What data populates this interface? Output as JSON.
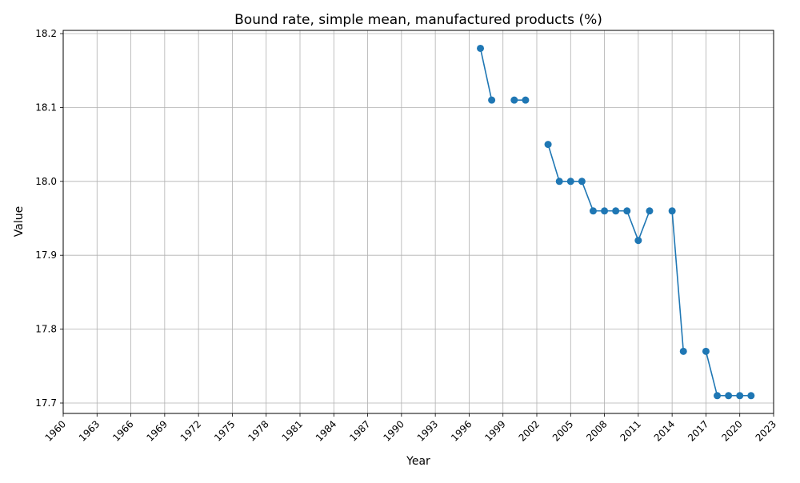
{
  "chart_data": {
    "type": "line",
    "title": "Bound rate, simple mean, manufactured products (%)",
    "xlabel": "Year",
    "ylabel": "Value",
    "xlim": [
      1960,
      2023
    ],
    "ylim": [
      17.7,
      18.2
    ],
    "x_ticks": [
      1960,
      1963,
      1966,
      1969,
      1972,
      1975,
      1978,
      1981,
      1984,
      1987,
      1990,
      1993,
      1996,
      1999,
      2002,
      2005,
      2008,
      2011,
      2014,
      2017,
      2020,
      2023
    ],
    "y_ticks": [
      "17.7",
      "17.8",
      "17.9",
      "18.0",
      "18.1",
      "18.2"
    ],
    "grid": true,
    "color": "#1f77b4",
    "series": [
      {
        "x": [
          1997,
          1998,
          1999,
          2000,
          2001,
          2002,
          2003,
          2004,
          2005,
          2006,
          2007,
          2008,
          2009,
          2010,
          2011,
          2012,
          2013,
          2014,
          2015,
          2016,
          2017,
          2018,
          2019,
          2020,
          2021
        ],
        "y": [
          18.18,
          18.11,
          null,
          18.11,
          18.11,
          null,
          18.05,
          18.0,
          18.0,
          18.0,
          17.96,
          17.96,
          17.96,
          17.96,
          17.92,
          17.96,
          null,
          17.96,
          17.77,
          null,
          17.77,
          17.71,
          17.71,
          17.71,
          17.71
        ]
      }
    ]
  }
}
